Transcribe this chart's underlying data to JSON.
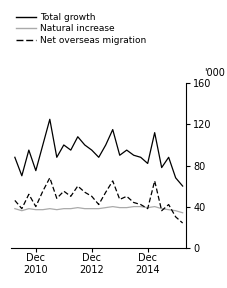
{
  "ylabel": "'000",
  "ylim": [
    0,
    160
  ],
  "yticks": [
    0,
    40,
    80,
    120,
    160
  ],
  "x_tick_labels": [
    "Dec\n2010",
    "Dec\n2012",
    "Dec\n2014"
  ],
  "xtick_positions": [
    3,
    11,
    19
  ],
  "legend": [
    {
      "label": "Total growth",
      "color": "#000000",
      "linestyle": "-"
    },
    {
      "label": "Natural increase",
      "color": "#aaaaaa",
      "linestyle": "-"
    },
    {
      "label": "Net overseas migration",
      "color": "#000000",
      "linestyle": "--"
    }
  ],
  "total_growth": [
    88,
    70,
    95,
    75,
    100,
    125,
    88,
    100,
    95,
    108,
    100,
    95,
    88,
    100,
    115,
    90,
    95,
    90,
    88,
    82,
    112,
    78,
    88,
    68,
    60
  ],
  "natural_increase": [
    38,
    36,
    38,
    37,
    37,
    38,
    37,
    38,
    38,
    39,
    38,
    38,
    38,
    39,
    40,
    39,
    39,
    40,
    40,
    39,
    40,
    38,
    37,
    36,
    34
  ],
  "net_overseas_migration": [
    46,
    38,
    52,
    40,
    55,
    68,
    48,
    55,
    50,
    60,
    54,
    50,
    42,
    54,
    65,
    47,
    50,
    44,
    42,
    38,
    65,
    36,
    42,
    30,
    24
  ],
  "background_color": "#ffffff",
  "line_width": 0.9
}
